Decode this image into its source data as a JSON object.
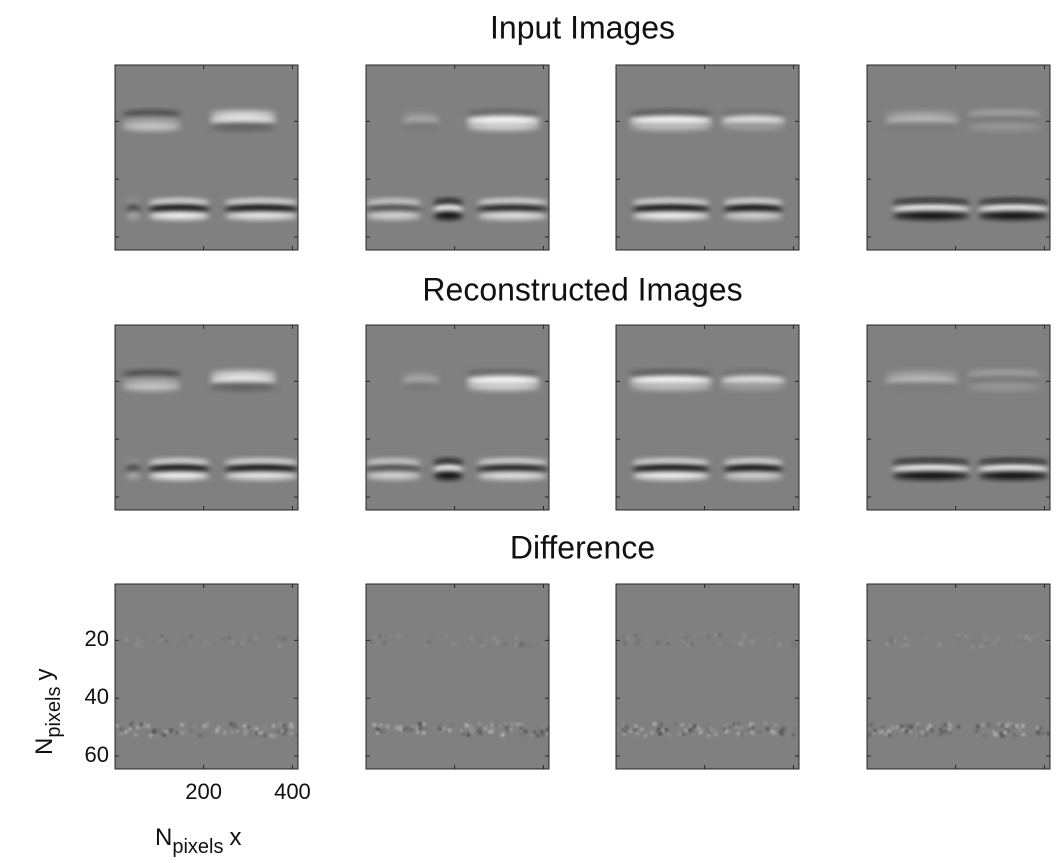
{
  "chart_data": {
    "type": "image-grid",
    "rows": [
      {
        "title": "Input Images"
      },
      {
        "title": "Reconstructed Images"
      },
      {
        "title": "Difference"
      }
    ],
    "xlim": [
      0.5,
      412.5
    ],
    "ylim": [
      0.5,
      64.5
    ],
    "xticks": [
      200,
      400
    ],
    "yticks": [
      20,
      40,
      60
    ],
    "xlabel": {
      "main": "N",
      "sub": "pixels",
      "suffix": "x"
    },
    "ylabel": {
      "main": "N",
      "sub": "pixels",
      "suffix": "y"
    }
  }
}
